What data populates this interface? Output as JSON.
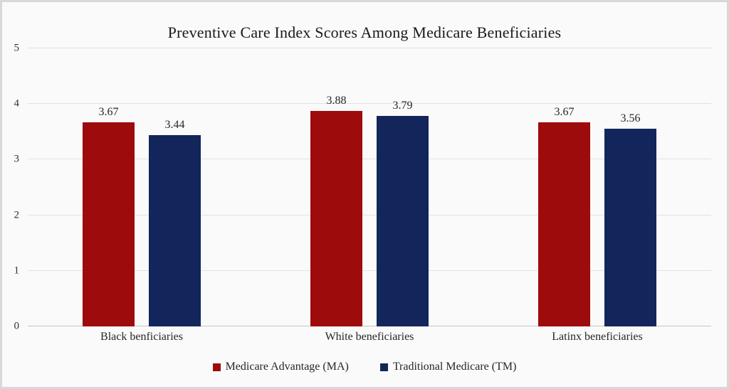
{
  "page": {
    "background_color": "#fafafa",
    "frame_border_color": "#d8d8d8"
  },
  "chart_data": {
    "type": "bar",
    "title": "Preventive Care Index Scores Among Medicare Beneficiaries",
    "categories": [
      "Black benficiaries",
      "White beneficiaries",
      "Latinx beneficiaries"
    ],
    "series": [
      {
        "name": "Medicare Advantage (MA)",
        "color": "#9e0b0c",
        "values": [
          3.67,
          3.88,
          3.67
        ]
      },
      {
        "name": "Traditional Medicare (TM)",
        "color": "#12265b",
        "values": [
          3.44,
          3.79,
          3.56
        ]
      }
    ],
    "xlabel": "",
    "ylabel": "",
    "ylim": [
      0,
      5
    ],
    "yticks": [
      0,
      1,
      2,
      3,
      4,
      5
    ],
    "grid": true,
    "value_labels": true,
    "value_label_format": "0.00",
    "legend_position": "bottom",
    "gridline_color": "#e2e2e2",
    "axis_line_color": "#c4c4c4",
    "text_color": "#262626"
  }
}
